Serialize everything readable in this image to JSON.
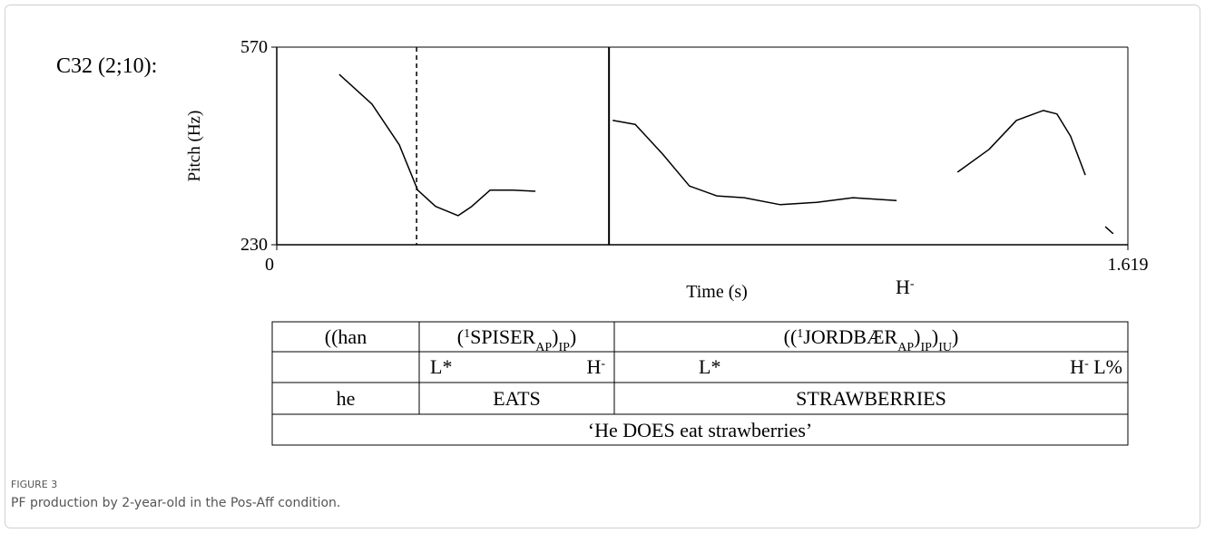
{
  "chart_data": {
    "type": "line",
    "title": "C32 (2;10):",
    "ylabel": "Pitch (Hz)",
    "xlabel": "Time (s)",
    "xlim": [
      0,
      1.619
    ],
    "ylim": [
      230,
      570
    ],
    "xticks": [
      0,
      1.619
    ],
    "yticks": [
      230,
      570
    ],
    "x": [
      0.119,
      0.181,
      0.233,
      0.268,
      0.302,
      0.345,
      0.371,
      0.406,
      0.449,
      0.492,
      null,
      0.639,
      0.682,
      0.734,
      0.785,
      0.837,
      0.889,
      0.958,
      1.027,
      1.096,
      1.179,
      null,
      1.295,
      1.355,
      1.407,
      1.458,
      1.484,
      1.51,
      1.538,
      null,
      1.576,
      1.591
    ],
    "series": [
      {
        "color": "#000000",
        "values": [
          523,
          472,
          402,
          324,
          296,
          280,
          296,
          324,
          324,
          322,
          null,
          444,
          437,
          386,
          331,
          314,
          311,
          299,
          303,
          311,
          306,
          null,
          355,
          394,
          444,
          461,
          455,
          417,
          350,
          null,
          261,
          249
        ]
      }
    ],
    "boundaries": [
      {
        "x": 0.266,
        "style": "dashed"
      },
      {
        "x": 0.632,
        "style": "solid"
      }
    ],
    "annotation": [
      {
        "text": "H"
      },
      {
        "text": "-",
        "pos": "sup"
      }
    ]
  },
  "table": {
    "header": [
      [
        {
          "text": "((han"
        }
      ],
      [
        {
          "text": "("
        },
        {
          "text": "1",
          "pos": "sup"
        },
        {
          "text": "SPISER"
        },
        {
          "text": "AP",
          "pos": "sub"
        },
        {
          "text": ")"
        },
        {
          "text": "IP",
          "pos": "sub"
        },
        {
          "text": ")"
        }
      ],
      [
        {
          "text": "(("
        },
        {
          "text": "1",
          "pos": "sup"
        },
        {
          "text": "JORDBÆR"
        },
        {
          "text": "AP",
          "pos": "sub"
        },
        {
          "text": ")"
        },
        {
          "text": "IP",
          "pos": "sub"
        },
        {
          "text": ")"
        },
        {
          "text": "IU",
          "pos": "sub"
        },
        {
          "text": ")"
        }
      ]
    ],
    "tones": [
      {
        "left": [
          {
            "text": "L*"
          }
        ],
        "right": [
          {
            "text": "H"
          },
          {
            "text": "-",
            "pos": "sup"
          }
        ]
      },
      {
        "left": [
          {
            "text": "L*"
          }
        ],
        "right": [
          {
            "text": "H"
          },
          {
            "text": "-",
            "pos": "sup"
          },
          {
            "text": " L%"
          }
        ]
      }
    ],
    "gloss": [
      "he",
      "EATS",
      "STRAWBERRIES"
    ],
    "translation": "‘He DOES eat strawberries’"
  },
  "caption": {
    "label": "FIGURE 3",
    "text": "PF production by 2-year-old in the Pos-Aff condition."
  }
}
